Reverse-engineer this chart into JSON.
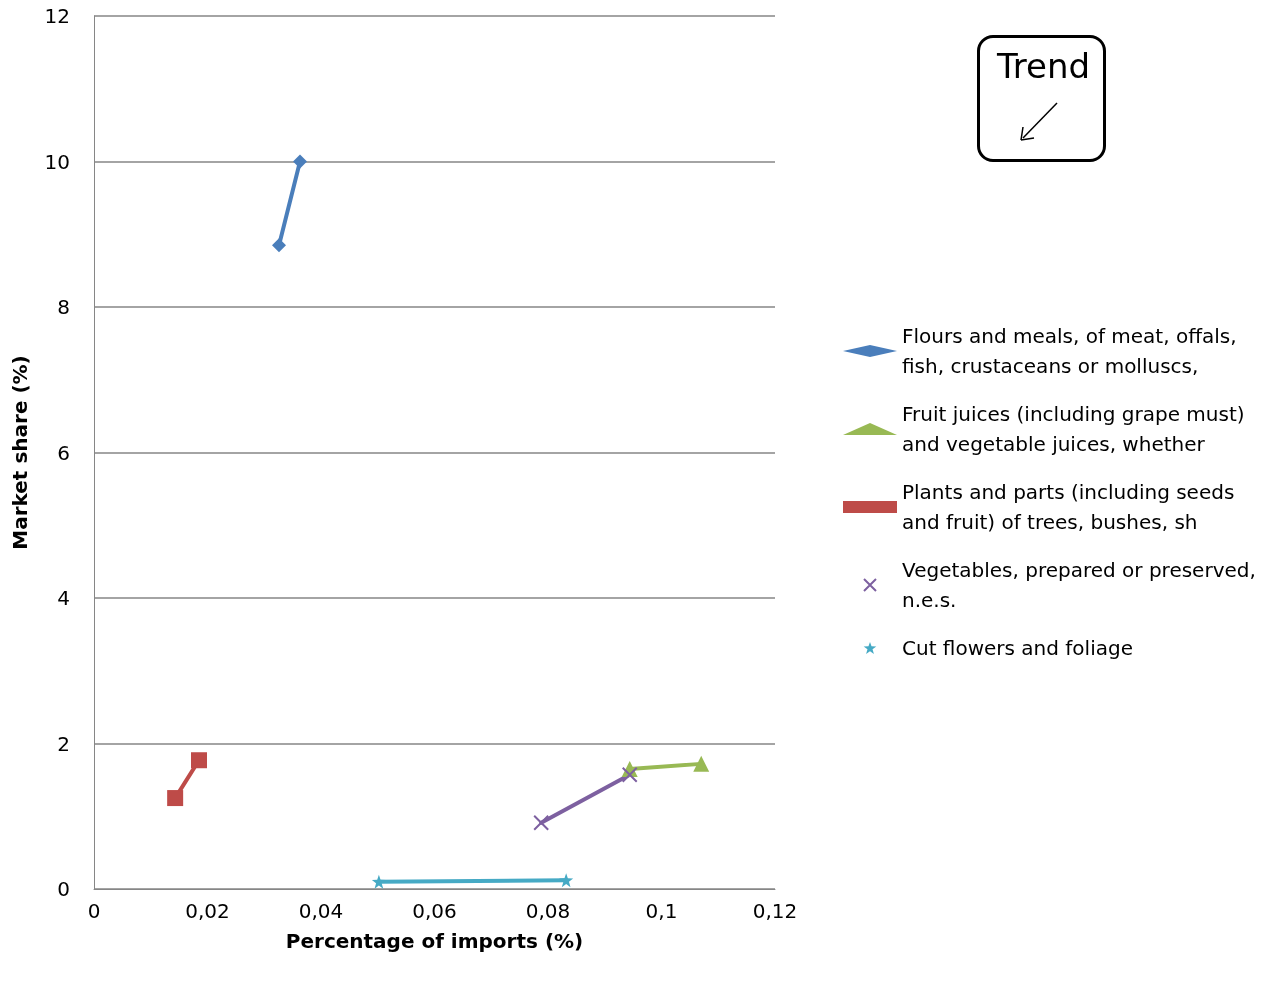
{
  "chart_data": {
    "type": "line",
    "xlabel": "Percentage of imports (%)",
    "ylabel": "Market share (%)",
    "xlim": [
      0,
      0.12
    ],
    "xticks": [
      0,
      {
        "value": 0.02,
        "label": "0,02"
      },
      {
        "value": 0.04,
        "label": "0,04"
      },
      {
        "value": 0.06,
        "label": "0,06"
      },
      {
        "value": 0.08,
        "label": "0,08"
      },
      {
        "value": 0.1,
        "label": "0,1"
      },
      {
        "value": 0.12,
        "label": "0,12"
      }
    ],
    "ylim": [
      0,
      12
    ],
    "yticks": [
      0,
      2,
      4,
      6,
      8,
      10,
      12
    ],
    "grid": "y",
    "legend": "right",
    "line_style": "solid",
    "annotations": [
      "Trend"
    ],
    "series": [
      {
        "name": "Flours and meals, of meat, offals, fish, crustaceans or molluscs,",
        "color": "#4a7ebb",
        "marker": "diamond",
        "x": [
          0.0326,
          0.0363
        ],
        "values": [
          8.85,
          10.0
        ]
      },
      {
        "name": "Fruit juices (including grape must) and vegetable juices, whether",
        "color": "#98b954",
        "marker": "triangle",
        "x": [
          0.0944,
          0.107
        ],
        "values": [
          1.65,
          1.72
        ]
      },
      {
        "name": "Plants and parts (including seeds and fruit) of trees, bushes, sh",
        "color": "#be4b48",
        "marker": "square",
        "x": [
          0.0143,
          0.0185
        ],
        "values": [
          1.25,
          1.77
        ]
      },
      {
        "name": "Vegetables, prepared or preserved, n.e.s.",
        "color": "#7d60a0",
        "marker": "cross",
        "x": [
          0.0788,
          0.0944
        ],
        "values": [
          0.91,
          1.57
        ]
      },
      {
        "name": "Cut flowers and foliage",
        "color": "#46aac5",
        "marker": "star",
        "x": [
          0.0502,
          0.0832
        ],
        "values": [
          0.1,
          0.12
        ]
      }
    ]
  }
}
